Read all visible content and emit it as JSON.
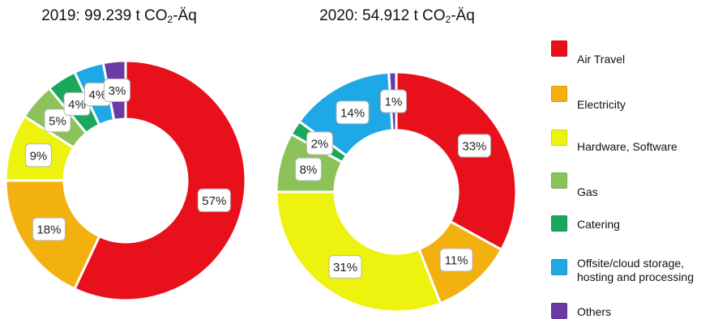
{
  "chart_data": [
    {
      "type": "pie",
      "title": "2019: 99.239 t CO",
      "title_sub": "2",
      "title_suffix": "-Äq",
      "categories": [
        "Air Travel",
        "Electricity",
        "Hardware, Software",
        "Gas",
        "Catering",
        "Offsite/cloud storage, hosting and processing",
        "Others"
      ],
      "values": [
        57,
        18,
        9,
        5,
        4,
        4,
        3
      ],
      "labels": [
        "57%",
        "18%",
        "9%",
        "5%",
        "4%",
        "4%",
        "3%"
      ],
      "unit": "%",
      "donut": true
    },
    {
      "type": "pie",
      "title": "2020: 54.912 t CO",
      "title_sub": "2",
      "title_suffix": "-Äq",
      "categories": [
        "Air Travel",
        "Electricity",
        "Hardware, Software",
        "Gas",
        "Catering",
        "Offsite/cloud storage, hosting and processing",
        "Others"
      ],
      "values": [
        33,
        11,
        31,
        8,
        2,
        14,
        1
      ],
      "labels": [
        "33%",
        "11%",
        "31%",
        "8%",
        "2%",
        "14%",
        "1%"
      ],
      "unit": "%",
      "donut": true
    }
  ],
  "legend": {
    "placement": "right",
    "items": [
      {
        "label": "Air Travel",
        "color": "#e8101a"
      },
      {
        "label": "Electricity",
        "color": "#f2b10f"
      },
      {
        "label": "Hardware, Software",
        "color": "#eef20f"
      },
      {
        "label": "Gas",
        "color": "#8bc25a"
      },
      {
        "label": "Catering",
        "color": "#1aa85a"
      },
      {
        "label": "Offsite/cloud storage,\nhosting and processing",
        "color": "#1ea8e6"
      },
      {
        "label": "Others",
        "color": "#6a3ba2"
      }
    ]
  }
}
